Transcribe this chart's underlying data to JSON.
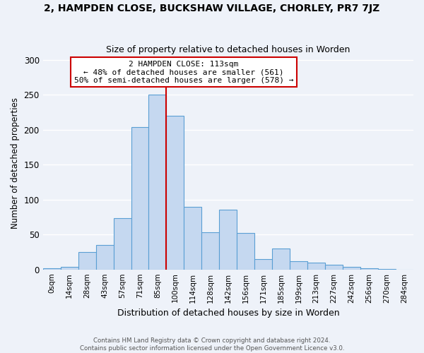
{
  "title": "2, HAMPDEN CLOSE, BUCKSHAW VILLAGE, CHORLEY, PR7 7JZ",
  "subtitle": "Size of property relative to detached houses in Worden",
  "xlabel": "Distribution of detached houses by size in Worden",
  "ylabel": "Number of detached properties",
  "bar_labels": [
    "0sqm",
    "14sqm",
    "28sqm",
    "43sqm",
    "57sqm",
    "71sqm",
    "85sqm",
    "100sqm",
    "114sqm",
    "128sqm",
    "142sqm",
    "156sqm",
    "171sqm",
    "185sqm",
    "199sqm",
    "213sqm",
    "227sqm",
    "242sqm",
    "256sqm",
    "270sqm",
    "284sqm"
  ],
  "bar_values": [
    2,
    4,
    25,
    35,
    73,
    204,
    250,
    220,
    90,
    53,
    85,
    52,
    15,
    30,
    12,
    10,
    7,
    4,
    2,
    1,
    0
  ],
  "bar_color": "#c5d8f0",
  "bar_edge_color": "#5a9fd4",
  "vline_x_index": 7,
  "vline_color": "#cc0000",
  "annotation_title": "2 HAMPDEN CLOSE: 113sqm",
  "annotation_line1": "← 48% of detached houses are smaller (561)",
  "annotation_line2": "50% of semi-detached houses are larger (578) →",
  "annotation_box_color": "#cc0000",
  "ylim": [
    0,
    305
  ],
  "footer1": "Contains HM Land Registry data © Crown copyright and database right 2024.",
  "footer2": "Contains public sector information licensed under the Open Government Licence v3.0.",
  "bg_color": "#eef2f9",
  "grid_color": "#ffffff"
}
